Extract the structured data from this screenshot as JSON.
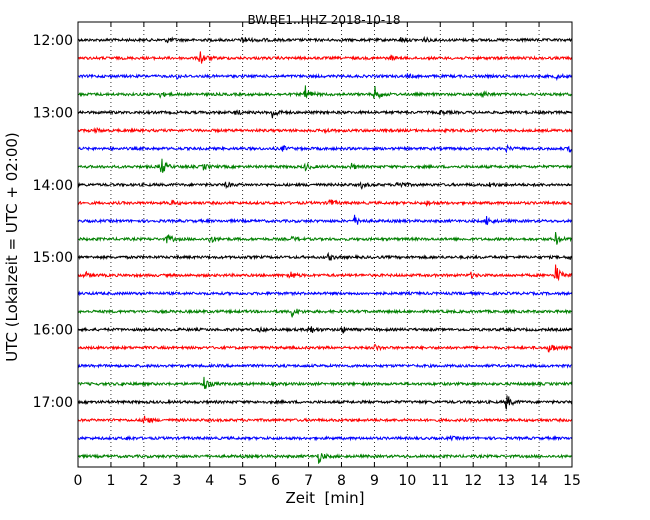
{
  "chart_data": {
    "type": "line",
    "subtype": "helicorder",
    "title": "BW.BE1..HHZ 2018-10-18",
    "xlabel": "Zeit  [min]",
    "ylabel": "UTC (Lokalzeit = UTC + 02:00)",
    "xlim": [
      0,
      15
    ],
    "x_ticks": [
      "0",
      "1",
      "2",
      "3",
      "4",
      "5",
      "6",
      "7",
      "8",
      "9",
      "10",
      "11",
      "12",
      "13",
      "14",
      "15"
    ],
    "y_ticks": [
      "12:00",
      "13:00",
      "14:00",
      "15:00",
      "16:00",
      "17:00"
    ],
    "row_interval_min": 15,
    "grid": "vertical-dotted",
    "colors": [
      "#000000",
      "#ff0000",
      "#0000ff",
      "#008000"
    ],
    "rows": [
      {
        "start": "12:00",
        "events": [
          [
            2.7,
            0.3
          ],
          [
            5.0,
            0.45
          ],
          [
            5.5,
            0.2
          ],
          [
            9.8,
            0.25
          ],
          [
            10.5,
            0.2
          ]
        ]
      },
      {
        "start": "12:15",
        "events": [
          [
            3.7,
            0.85
          ],
          [
            9.5,
            0.2
          ]
        ]
      },
      {
        "start": "12:30",
        "events": [
          [
            3.0,
            0.2
          ],
          [
            10.0,
            0.2
          ],
          [
            14.5,
            0.25
          ]
        ]
      },
      {
        "start": "12:45",
        "events": [
          [
            6.9,
            0.8
          ],
          [
            9.0,
            0.85
          ],
          [
            12.3,
            0.3
          ],
          [
            2.5,
            0.25
          ]
        ]
      },
      {
        "start": "13:00",
        "events": [
          [
            5.9,
            0.65
          ],
          [
            4.8,
            0.25
          ],
          [
            11.0,
            0.2
          ]
        ]
      },
      {
        "start": "13:15",
        "events": [
          [
            0.5,
            0.2
          ],
          [
            7.5,
            0.2
          ]
        ]
      },
      {
        "start": "13:30",
        "events": [
          [
            6.2,
            0.25
          ],
          [
            13.0,
            0.25
          ],
          [
            14.9,
            0.3
          ]
        ]
      },
      {
        "start": "13:45",
        "events": [
          [
            2.5,
            1.1
          ],
          [
            3.8,
            0.3
          ],
          [
            6.9,
            0.35
          ],
          [
            8.3,
            0.3
          ]
        ]
      },
      {
        "start": "14:00",
        "events": [
          [
            4.5,
            0.3
          ],
          [
            8.6,
            0.3
          ],
          [
            9.7,
            0.55
          ],
          [
            12.5,
            0.2
          ]
        ]
      },
      {
        "start": "14:15",
        "events": [
          [
            2.8,
            0.3
          ],
          [
            7.6,
            0.55
          ],
          [
            10.6,
            0.25
          ]
        ]
      },
      {
        "start": "14:30",
        "events": [
          [
            8.4,
            0.55
          ],
          [
            12.4,
            0.5
          ]
        ]
      },
      {
        "start": "14:45",
        "events": [
          [
            2.7,
            0.5
          ],
          [
            4.0,
            0.45
          ],
          [
            14.5,
            0.65
          ],
          [
            6.5,
            0.2
          ]
        ]
      },
      {
        "start": "15:00",
        "events": [
          [
            7.6,
            0.35
          ],
          [
            14.9,
            0.3
          ]
        ]
      },
      {
        "start": "15:15",
        "events": [
          [
            0.2,
            0.35
          ],
          [
            6.4,
            0.6
          ],
          [
            11.9,
            0.3
          ],
          [
            14.5,
            1.1
          ]
        ]
      },
      {
        "start": "15:30",
        "events": []
      },
      {
        "start": "15:45",
        "events": [
          [
            6.5,
            0.6
          ]
        ]
      },
      {
        "start": "16:00",
        "events": [
          [
            7.0,
            0.55
          ],
          [
            8.0,
            0.35
          ],
          [
            5.5,
            0.2
          ]
        ]
      },
      {
        "start": "16:15",
        "events": [
          [
            9.0,
            0.3
          ],
          [
            14.3,
            0.7
          ]
        ]
      },
      {
        "start": "16:30",
        "events": []
      },
      {
        "start": "16:45",
        "events": [
          [
            3.8,
            0.9
          ],
          [
            1.3,
            0.15
          ]
        ]
      },
      {
        "start": "17:00",
        "events": [
          [
            13.0,
            0.85
          ]
        ]
      },
      {
        "start": "17:15",
        "events": [
          [
            2.0,
            0.55
          ]
        ]
      },
      {
        "start": "17:30",
        "events": [
          [
            1.5,
            0.15
          ],
          [
            11.3,
            0.15
          ]
        ]
      },
      {
        "start": "17:45",
        "events": [
          [
            7.3,
            0.65
          ]
        ]
      }
    ]
  }
}
